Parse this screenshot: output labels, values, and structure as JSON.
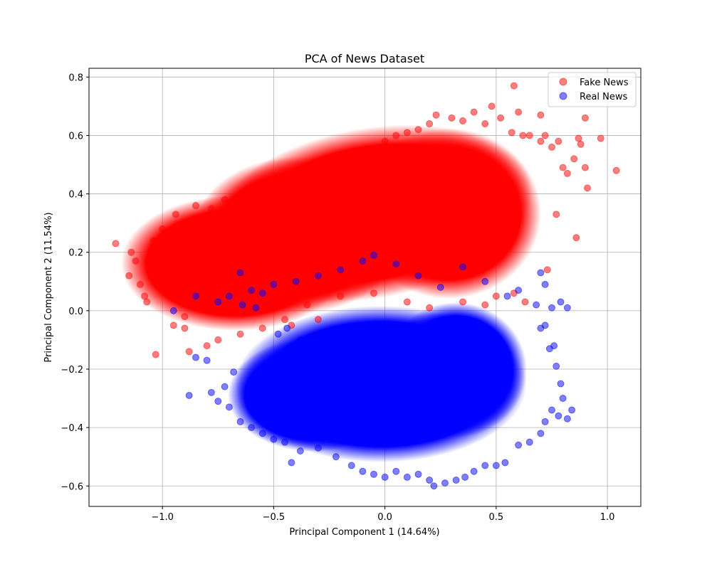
{
  "chart_data": {
    "type": "scatter",
    "title": "PCA of News Dataset",
    "xlabel": "Principal Component 1 (14.64%)",
    "ylabel": "Principal Component 2 (11.54%)",
    "xlim": [
      -1.33,
      1.15
    ],
    "ylim": [
      -0.67,
      0.83
    ],
    "xticks": [
      -1.0,
      -0.5,
      0.0,
      0.5,
      1.0
    ],
    "xtick_labels": [
      "−1.0",
      "−0.5",
      "0.0",
      "0.5",
      "1.0"
    ],
    "yticks": [
      -0.6,
      -0.4,
      -0.2,
      0.0,
      0.2,
      0.4,
      0.6,
      0.8
    ],
    "ytick_labels": [
      "−0.6",
      "−0.4",
      "−0.2",
      "0.0",
      "0.2",
      "0.4",
      "0.6",
      "0.8"
    ],
    "grid": true,
    "legend_position": "top-right",
    "series": [
      {
        "name": "Fake News",
        "color": "#ff0000",
        "alpha": 0.5,
        "points": [
          [
            -1.21,
            0.23
          ],
          [
            -1.15,
            0.12
          ],
          [
            -1.14,
            0.2
          ],
          [
            -1.12,
            0.17
          ],
          [
            -1.1,
            0.09
          ],
          [
            -1.08,
            0.05
          ],
          [
            -1.07,
            0.03
          ],
          [
            -1.05,
            0.12
          ],
          [
            -1.04,
            0.24
          ],
          [
            -1.03,
            -0.15
          ],
          [
            -1.02,
            0.15
          ],
          [
            -1.0,
            0.28
          ],
          [
            -0.98,
            0.08
          ],
          [
            -0.96,
            0.27
          ],
          [
            -0.94,
            0.33
          ],
          [
            -0.92,
            0.18
          ],
          [
            -0.9,
            -0.06
          ],
          [
            -0.88,
            -0.14
          ],
          [
            -0.85,
            0.36
          ],
          [
            -0.82,
            0.31
          ],
          [
            -0.78,
            0.35
          ],
          [
            -0.72,
            0.38
          ],
          [
            -0.68,
            0.31
          ],
          [
            -0.64,
            0.4
          ],
          [
            -0.6,
            0.36
          ],
          [
            -0.55,
            0.37
          ],
          [
            -0.5,
            0.34
          ],
          [
            -0.45,
            0.4
          ],
          [
            -0.4,
            0.41
          ],
          [
            -0.35,
            0.45
          ],
          [
            -0.3,
            0.43
          ],
          [
            -0.25,
            0.48
          ],
          [
            -0.2,
            0.46
          ],
          [
            -0.15,
            0.52
          ],
          [
            -0.1,
            0.53
          ],
          [
            -0.05,
            0.55
          ],
          [
            0.0,
            0.58
          ],
          [
            0.05,
            0.6
          ],
          [
            0.1,
            0.61
          ],
          [
            0.15,
            0.62
          ],
          [
            0.2,
            0.64
          ],
          [
            0.23,
            0.67
          ],
          [
            0.3,
            0.66
          ],
          [
            0.35,
            0.65
          ],
          [
            0.4,
            0.68
          ],
          [
            0.45,
            0.64
          ],
          [
            0.48,
            0.7
          ],
          [
            0.52,
            0.66
          ],
          [
            0.57,
            0.61
          ],
          [
            0.58,
            0.77
          ],
          [
            0.6,
            0.68
          ],
          [
            0.62,
            0.6
          ],
          [
            0.65,
            0.6
          ],
          [
            0.7,
            0.58
          ],
          [
            0.7,
            0.67
          ],
          [
            0.72,
            0.6
          ],
          [
            0.75,
            0.56
          ],
          [
            0.78,
            0.58
          ],
          [
            0.8,
            0.49
          ],
          [
            0.82,
            0.47
          ],
          [
            0.85,
            0.52
          ],
          [
            0.86,
            0.25
          ],
          [
            0.87,
            0.59
          ],
          [
            0.88,
            0.57
          ],
          [
            0.9,
            0.66
          ],
          [
            0.9,
            0.49
          ],
          [
            0.91,
            0.42
          ],
          [
            0.97,
            0.59
          ],
          [
            1.04,
            0.48
          ],
          [
            0.77,
            0.33
          ],
          [
            0.73,
            0.14
          ],
          [
            0.58,
            0.06
          ],
          [
            0.63,
            0.03
          ],
          [
            0.5,
            0.05
          ],
          [
            0.45,
            0.02
          ],
          [
            0.35,
            0.03
          ],
          [
            0.2,
            0.01
          ],
          [
            0.1,
            0.03
          ],
          [
            -0.05,
            0.06
          ],
          [
            -0.2,
            0.05
          ],
          [
            -0.35,
            0.02
          ],
          [
            -0.45,
            -0.03
          ],
          [
            -0.55,
            -0.06
          ],
          [
            -0.65,
            -0.08
          ],
          [
            -0.75,
            -0.1
          ],
          [
            -0.8,
            -0.12
          ],
          [
            -0.9,
            -0.02
          ],
          [
            -0.95,
            -0.05
          ],
          [
            -0.42,
            -0.05
          ],
          [
            -0.3,
            -0.03
          ]
        ]
      },
      {
        "name": "Real News",
        "color": "#0000ff",
        "alpha": 0.5,
        "points": [
          [
            -0.88,
            -0.29
          ],
          [
            -0.85,
            -0.16
          ],
          [
            -0.8,
            -0.17
          ],
          [
            -0.78,
            -0.28
          ],
          [
            -0.75,
            -0.31
          ],
          [
            -0.72,
            -0.26
          ],
          [
            -0.7,
            -0.33
          ],
          [
            -0.68,
            -0.21
          ],
          [
            -0.65,
            -0.38
          ],
          [
            -0.62,
            -0.3
          ],
          [
            -0.6,
            -0.4
          ],
          [
            -0.58,
            -0.35
          ],
          [
            -0.55,
            -0.42
          ],
          [
            -0.5,
            -0.44
          ],
          [
            -0.45,
            -0.45
          ],
          [
            -0.42,
            -0.52
          ],
          [
            -0.38,
            -0.48
          ],
          [
            -0.3,
            -0.47
          ],
          [
            -0.22,
            -0.5
          ],
          [
            -0.15,
            -0.53
          ],
          [
            -0.1,
            -0.55
          ],
          [
            -0.05,
            -0.56
          ],
          [
            0.0,
            -0.57
          ],
          [
            0.05,
            -0.55
          ],
          [
            0.1,
            -0.57
          ],
          [
            0.15,
            -0.56
          ],
          [
            0.2,
            -0.58
          ],
          [
            0.22,
            -0.6
          ],
          [
            0.27,
            -0.59
          ],
          [
            0.32,
            -0.58
          ],
          [
            0.36,
            -0.57
          ],
          [
            0.4,
            -0.55
          ],
          [
            0.45,
            -0.53
          ],
          [
            0.5,
            -0.53
          ],
          [
            0.54,
            -0.52
          ],
          [
            0.6,
            -0.46
          ],
          [
            0.65,
            -0.45
          ],
          [
            0.7,
            -0.42
          ],
          [
            0.72,
            -0.38
          ],
          [
            0.75,
            -0.34
          ],
          [
            0.78,
            -0.36
          ],
          [
            0.8,
            -0.3
          ],
          [
            0.82,
            -0.37
          ],
          [
            0.84,
            -0.34
          ],
          [
            0.79,
            -0.25
          ],
          [
            0.77,
            -0.19
          ],
          [
            0.74,
            -0.13
          ],
          [
            0.7,
            -0.06
          ],
          [
            0.72,
            -0.05
          ],
          [
            0.76,
            -0.12
          ],
          [
            0.79,
            0.03
          ],
          [
            0.82,
            0.01
          ],
          [
            0.75,
            0.01
          ],
          [
            0.7,
            0.13
          ],
          [
            0.68,
            0.02
          ],
          [
            0.72,
            0.09
          ],
          [
            0.6,
            0.07
          ],
          [
            0.55,
            0.05
          ],
          [
            0.45,
            0.1
          ],
          [
            0.35,
            0.15
          ],
          [
            0.25,
            0.08
          ],
          [
            0.15,
            0.12
          ],
          [
            0.05,
            0.16
          ],
          [
            -0.05,
            0.19
          ],
          [
            -0.1,
            0.17
          ],
          [
            -0.2,
            0.14
          ],
          [
            -0.3,
            0.12
          ],
          [
            -0.4,
            0.1
          ],
          [
            -0.5,
            0.09
          ],
          [
            -0.55,
            0.06
          ],
          [
            -0.6,
            0.07
          ],
          [
            -0.65,
            0.13
          ],
          [
            -0.7,
            0.05
          ],
          [
            -0.75,
            0.03
          ],
          [
            -0.85,
            0.05
          ],
          [
            -0.95,
            0.0
          ],
          [
            -0.64,
            0.02
          ],
          [
            -0.58,
            0.01
          ],
          [
            -0.48,
            -0.08
          ],
          [
            -0.44,
            -0.06
          ],
          [
            -0.38,
            -0.1
          ]
        ]
      }
    ]
  }
}
